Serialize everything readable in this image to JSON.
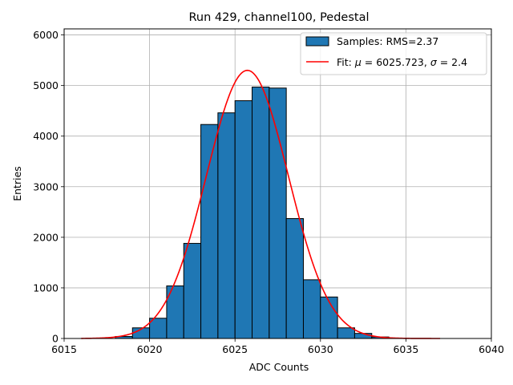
{
  "chart_data": {
    "type": "bar",
    "title": "Run 429, channel100, Pedestal",
    "xlabel": "ADC Counts",
    "ylabel": "Entries",
    "xlim": [
      6015,
      6040
    ],
    "ylim": [
      0,
      6120
    ],
    "grid": true,
    "legend_position": "top-right",
    "x_ticks": [
      6015,
      6020,
      6025,
      6030,
      6035,
      6040
    ],
    "y_ticks": [
      0,
      1000,
      2000,
      3000,
      4000,
      5000,
      6000
    ],
    "histogram": {
      "name": "Samples: RMS=2.37",
      "color": "#1f77b4",
      "bins": [
        {
          "start": 6018,
          "end": 6019,
          "count": 40
        },
        {
          "start": 6019,
          "end": 6020,
          "count": 210
        },
        {
          "start": 6020,
          "end": 6021,
          "count": 400
        },
        {
          "start": 6021,
          "end": 6022,
          "count": 1040
        },
        {
          "start": 6022,
          "end": 6023,
          "count": 1880
        },
        {
          "start": 6023,
          "end": 6024,
          "count": 4230
        },
        {
          "start": 6024,
          "end": 6025,
          "count": 4460
        },
        {
          "start": 6025,
          "end": 6026,
          "count": 4700
        },
        {
          "start": 6026,
          "end": 6027,
          "count": 4970
        },
        {
          "start": 6027,
          "end": 6028,
          "count": 4950
        },
        {
          "start": 6028,
          "end": 6029,
          "count": 2370
        },
        {
          "start": 6029,
          "end": 6030,
          "count": 1160
        },
        {
          "start": 6030,
          "end": 6031,
          "count": 820
        },
        {
          "start": 6031,
          "end": 6032,
          "count": 210
        },
        {
          "start": 6032,
          "end": 6033,
          "count": 100
        },
        {
          "start": 6033,
          "end": 6034,
          "count": 30
        }
      ]
    },
    "fit": {
      "name": "Fit: μ = 6025.723, σ = 2.4",
      "name_prefix": "Fit: ",
      "mu_symbol": "μ",
      "mu_text": " = 6025.723, ",
      "sigma_symbol": "σ",
      "sigma_text": " = 2.4",
      "color": "#ff0000",
      "mu": 6025.723,
      "sigma": 2.4,
      "amplitude": 5300,
      "x_range": [
        6016,
        6037
      ]
    }
  }
}
